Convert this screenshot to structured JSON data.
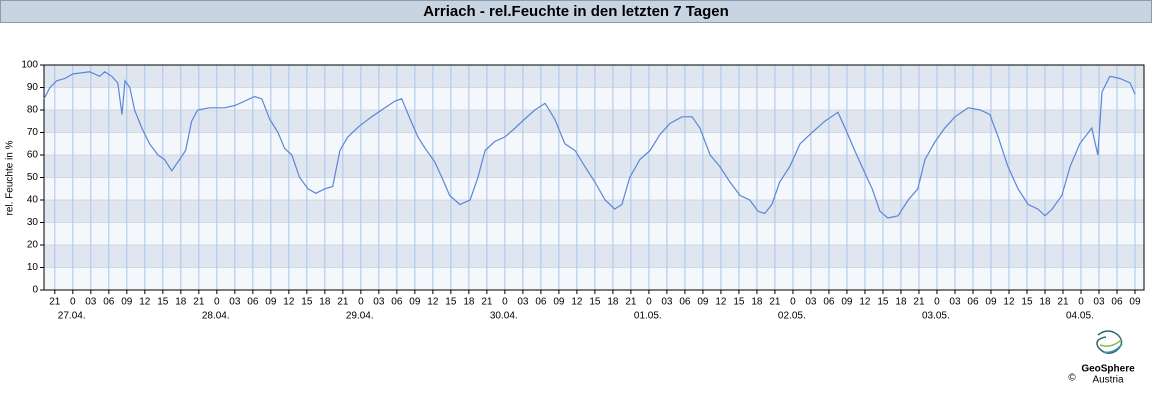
{
  "chart_data": {
    "type": "line",
    "title": "Arriach - rel.Feuchte in den letzten 7 Tagen",
    "y_label": "rel. Feuchte in %",
    "logo": "GeoSphere",
    "logo_sub": "Austria",
    "copyright": "©",
    "color": "#5b86d8",
    "grid": true,
    "ylim": [
      0,
      100
    ],
    "yticks": [
      0,
      10,
      20,
      30,
      40,
      50,
      60,
      70,
      80,
      90,
      100
    ],
    "xlim": [
      -4.8,
      178.5
    ],
    "xticks": [
      {
        "value": -3,
        "label": "21"
      },
      {
        "value": 0,
        "label": "0"
      },
      {
        "value": 3,
        "label": "03"
      },
      {
        "value": 6,
        "label": "06"
      },
      {
        "value": 9,
        "label": "09"
      },
      {
        "value": 12,
        "label": "12"
      },
      {
        "value": 15,
        "label": "15"
      },
      {
        "value": 18,
        "label": "18"
      },
      {
        "value": 21,
        "label": "21"
      },
      {
        "value": 24,
        "label": "0"
      },
      {
        "value": 27,
        "label": "03"
      },
      {
        "value": 30,
        "label": "06"
      },
      {
        "value": 33,
        "label": "09"
      },
      {
        "value": 36,
        "label": "12"
      },
      {
        "value": 39,
        "label": "15"
      },
      {
        "value": 42,
        "label": "18"
      },
      {
        "value": 45,
        "label": "21"
      },
      {
        "value": 48,
        "label": "0"
      },
      {
        "value": 51,
        "label": "03"
      },
      {
        "value": 54,
        "label": "06"
      },
      {
        "value": 57,
        "label": "09"
      },
      {
        "value": 60,
        "label": "12"
      },
      {
        "value": 63,
        "label": "15"
      },
      {
        "value": 66,
        "label": "18"
      },
      {
        "value": 69,
        "label": "21"
      },
      {
        "value": 72,
        "label": "0"
      },
      {
        "value": 75,
        "label": "03"
      },
      {
        "value": 78,
        "label": "06"
      },
      {
        "value": 81,
        "label": "09"
      },
      {
        "value": 84,
        "label": "12"
      },
      {
        "value": 87,
        "label": "15"
      },
      {
        "value": 90,
        "label": "18"
      },
      {
        "value": 93,
        "label": "21"
      },
      {
        "value": 96,
        "label": "0"
      },
      {
        "value": 99,
        "label": "03"
      },
      {
        "value": 102,
        "label": "06"
      },
      {
        "value": 105,
        "label": "09"
      },
      {
        "value": 108,
        "label": "12"
      },
      {
        "value": 111,
        "label": "15"
      },
      {
        "value": 114,
        "label": "18"
      },
      {
        "value": 117,
        "label": "21"
      },
      {
        "value": 120,
        "label": "0"
      },
      {
        "value": 123,
        "label": "03"
      },
      {
        "value": 126,
        "label": "06"
      },
      {
        "value": 129,
        "label": "09"
      },
      {
        "value": 132,
        "label": "12"
      },
      {
        "value": 135,
        "label": "15"
      },
      {
        "value": 138,
        "label": "18"
      },
      {
        "value": 141,
        "label": "21"
      },
      {
        "value": 144,
        "label": "0"
      },
      {
        "value": 147,
        "label": "03"
      },
      {
        "value": 150,
        "label": "06"
      },
      {
        "value": 153,
        "label": "09"
      },
      {
        "value": 156,
        "label": "12"
      },
      {
        "value": 159,
        "label": "15"
      },
      {
        "value": 162,
        "label": "18"
      },
      {
        "value": 165,
        "label": "21"
      },
      {
        "value": 168,
        "label": "0"
      },
      {
        "value": 171,
        "label": "03"
      },
      {
        "value": 174,
        "label": "06"
      },
      {
        "value": 177,
        "label": "09"
      }
    ],
    "day_labels": [
      {
        "value": 0,
        "label": "27.04."
      },
      {
        "value": 24,
        "label": "28.04."
      },
      {
        "value": 48,
        "label": "29.04."
      },
      {
        "value": 72,
        "label": "30.04."
      },
      {
        "value": 96,
        "label": "01.05."
      },
      {
        "value": 120,
        "label": "02.05."
      },
      {
        "value": 144,
        "label": "03.05."
      },
      {
        "value": 168,
        "label": "04.05."
      }
    ],
    "x": [
      -4.8,
      -3.8,
      -2.7,
      -1.3,
      0,
      2.8,
      4.5,
      5.3,
      6.5,
      7.5,
      8.2,
      8.7,
      9.5,
      10.3,
      11.5,
      12.8,
      14.2,
      15.3,
      16.5,
      17.8,
      18.8,
      19.8,
      20.8,
      22.8,
      25.3,
      27,
      28.7,
      30.3,
      31.5,
      32.8,
      34.2,
      35.3,
      36.5,
      37.8,
      39.2,
      40.5,
      42,
      43.3,
      44.5,
      45.8,
      47.8,
      49.8,
      52,
      53.7,
      54.8,
      56.2,
      57.5,
      58.7,
      60.3,
      61.5,
      62.8,
      64.5,
      66.2,
      67.5,
      68.7,
      70.3,
      72,
      73.7,
      75.3,
      77,
      78.7,
      80.3,
      82,
      83.7,
      85.3,
      87,
      88.7,
      90.3,
      91.5,
      92.8,
      94.5,
      96.2,
      97.8,
      99.5,
      101.5,
      103.2,
      104.5,
      106.2,
      107.8,
      109.5,
      111.2,
      112.8,
      114.2,
      115.3,
      116.5,
      117.8,
      119.5,
      121.2,
      123.2,
      125.3,
      127.5,
      128.7,
      130.3,
      132,
      133.2,
      134.5,
      135.8,
      137.5,
      139.2,
      140.8,
      142,
      143.7,
      145.3,
      147,
      149.2,
      151.2,
      152.8,
      154.2,
      155.8,
      157.5,
      159.2,
      160.8,
      162,
      163.2,
      164.8,
      166.2,
      167.8,
      169.8,
      170.8,
      171.5,
      172.8,
      174.5,
      176.2,
      177
    ],
    "values": [
      85,
      90,
      93,
      94,
      96,
      97,
      95,
      97,
      95,
      92,
      78,
      93,
      90,
      80,
      72,
      65,
      60,
      58,
      53,
      58,
      62,
      75,
      80,
      81,
      81,
      82,
      84,
      86,
      85,
      76,
      70,
      63,
      60,
      50,
      45,
      43,
      45,
      46,
      62,
      68,
      73,
      77,
      81,
      84,
      85,
      76,
      68,
      63,
      57,
      50,
      42,
      38,
      40,
      50,
      62,
      66,
      68,
      72,
      76,
      80,
      83,
      76,
      65,
      62,
      55,
      48,
      40,
      36,
      38,
      50,
      58,
      62,
      69,
      74,
      77,
      77,
      72,
      60,
      55,
      48,
      42,
      40,
      35,
      34,
      38,
      48,
      55,
      65,
      70,
      75,
      79,
      72,
      62,
      52,
      45,
      35,
      32,
      33,
      40,
      45,
      58,
      66,
      72,
      77,
      81,
      80,
      78,
      68,
      55,
      45,
      38,
      36,
      33,
      36,
      42,
      55,
      65,
      72,
      60,
      88,
      95,
      94,
      92,
      87
    ]
  }
}
